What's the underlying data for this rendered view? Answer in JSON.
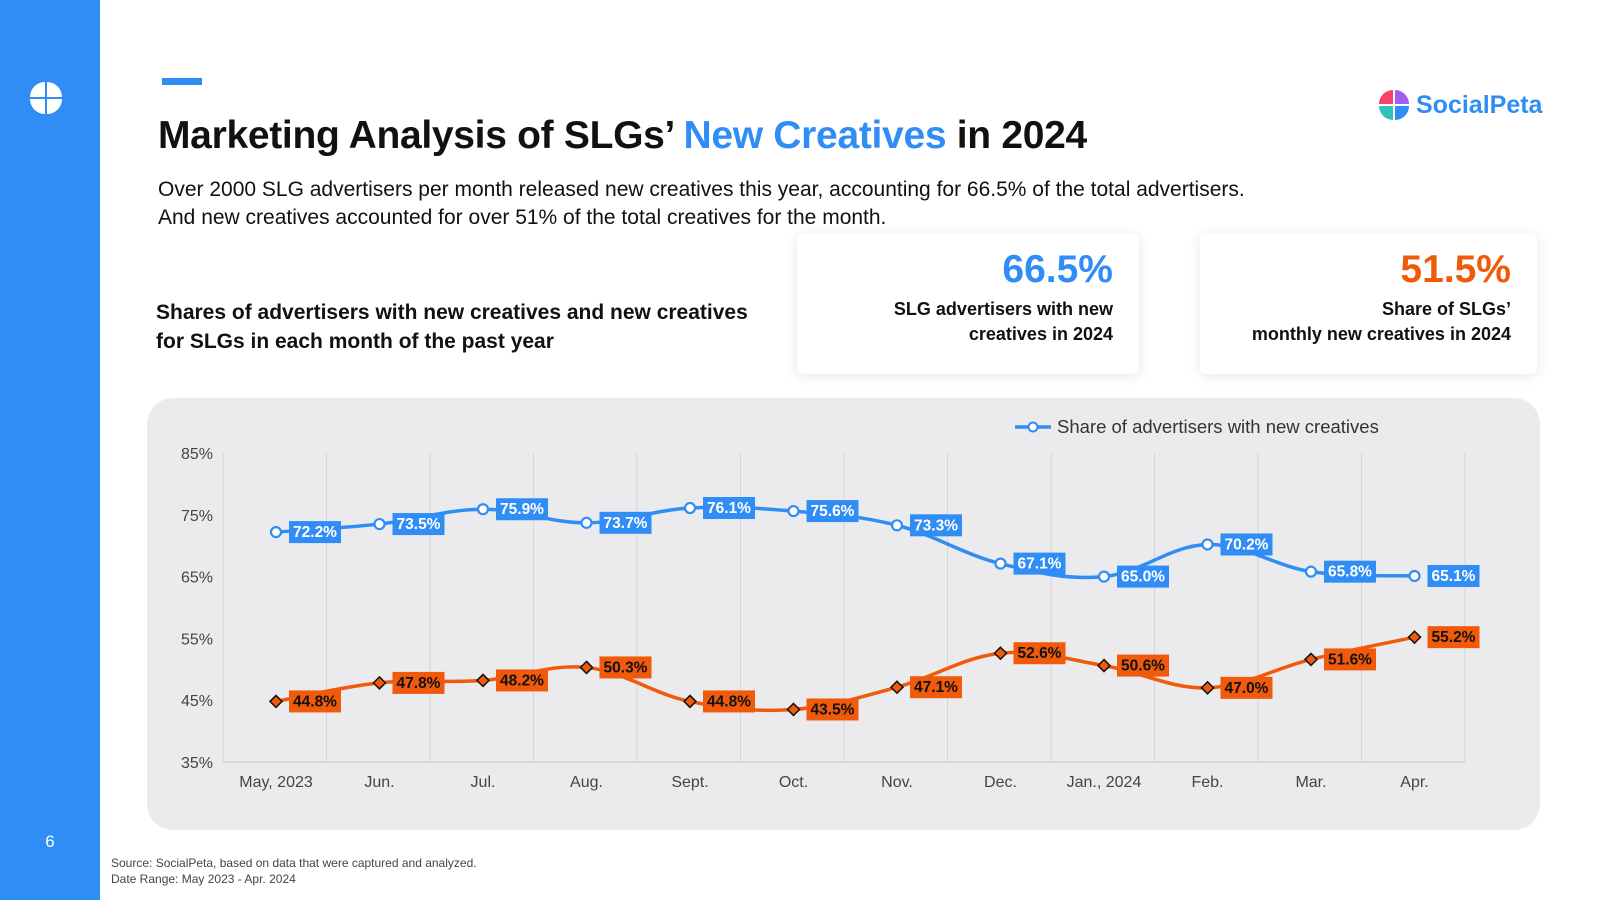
{
  "page": {
    "number": "6",
    "title_prefix": "Marketing Analysis of SLGs’ ",
    "title_highlight": "New Creatives",
    "title_suffix": " in 2024",
    "intro_line1": "Over 2000 SLG advertisers per month released new creatives this year, accounting for 66.5% of the total advertisers.",
    "intro_line2": "And new creatives accounted for over 51% of the total creatives for the month.",
    "chart_subtitle_line1": "Shares of advertisers with new creatives and new creatives",
    "chart_subtitle_line2": "for SLGs in each month of the past year",
    "footnote_line1": "Source: SocialPeta, based on data that were captured and analyzed.",
    "footnote_line2": "Date Range: May 2023 - Apr. 2024"
  },
  "brand": {
    "name": "SocialPeta",
    "colors": [
      "#f7426b",
      "#a15cf0",
      "#2f8df5",
      "#2ec4b6"
    ]
  },
  "kpis": [
    {
      "value": "66.5%",
      "label_line1": "SLG advertisers with new",
      "label_line2": "creatives in 2024",
      "color": "#2f8df5"
    },
    {
      "value": "51.5%",
      "label_line1": "Share of SLGs’",
      "label_line2": "monthly new creatives in 2024",
      "color": "#f05a0a"
    }
  ],
  "colors": {
    "accent": "#2f8df5",
    "orange": "#f05a0a",
    "panel": "#ebebed"
  },
  "chart_data": {
    "type": "line",
    "categories": [
      "May, 2023",
      "Jun.",
      "Jul.",
      "Aug.",
      "Sept.",
      "Oct.",
      "Nov.",
      "Dec.",
      "Jan., 2024",
      "Feb.",
      "Mar.",
      "Apr."
    ],
    "series": [
      {
        "name": "Share of advertisers with new creatives",
        "color": "#2f8df5",
        "marker": "circle",
        "values": [
          72.2,
          73.5,
          75.9,
          73.7,
          76.1,
          75.6,
          73.3,
          67.1,
          65.0,
          70.2,
          65.8,
          65.1
        ],
        "labels": [
          "72.2%",
          "73.5%",
          "75.9%",
          "73.7%",
          "76.1%",
          "75.6%",
          "73.3%",
          "67.1%",
          "65.0%",
          "70.2%",
          "65.8%",
          "65.1%"
        ]
      },
      {
        "color": "#f05a0a",
        "marker": "diamond",
        "values": [
          44.8,
          47.8,
          48.2,
          50.3,
          44.8,
          43.5,
          47.1,
          52.6,
          50.6,
          47.0,
          51.6,
          55.2
        ],
        "labels": [
          "44.8%",
          "47.8%",
          "48.2%",
          "50.3%",
          "44.8%",
          "43.5%",
          "47.1%",
          "52.6%",
          "50.6%",
          "47.0%",
          "51.6%",
          "55.2%"
        ]
      }
    ],
    "yticks": [
      "85%",
      "75%",
      "65%",
      "55%",
      "45%",
      "35%"
    ],
    "ylim": [
      35,
      85
    ],
    "grid": "vertical",
    "legend": "top-right",
    "smooth": true
  }
}
